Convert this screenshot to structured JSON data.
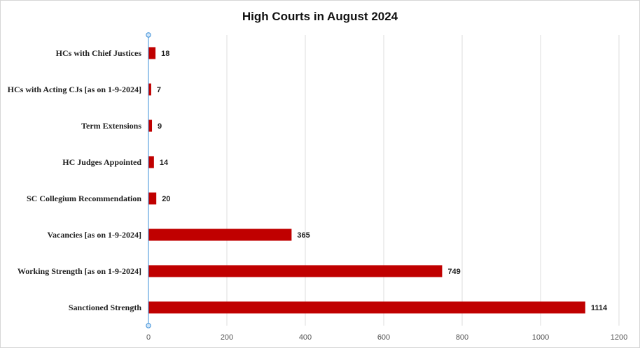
{
  "chart_data": {
    "type": "bar",
    "orientation": "horizontal",
    "title": "High Courts in August 2024",
    "categories": [
      "HCs with Chief Justices",
      "HCs with Acting CJs [as on 1-9-2024]",
      "Term Extensions",
      "HC Judges Appointed",
      "SC Collegium Recommendation",
      "Vacancies [as on 1-9-2024]",
      "Working Strength [as on 1-9-2024]",
      "Sanctioned Strength"
    ],
    "values": [
      18,
      7,
      9,
      14,
      20,
      365,
      749,
      1114
    ],
    "xlim": [
      0,
      1200
    ],
    "xticks": [
      0,
      200,
      400,
      600,
      800,
      1000,
      1200
    ],
    "xlabel": "",
    "ylabel": "",
    "grid": true,
    "legend": "none",
    "bar_color": "#c00000"
  }
}
